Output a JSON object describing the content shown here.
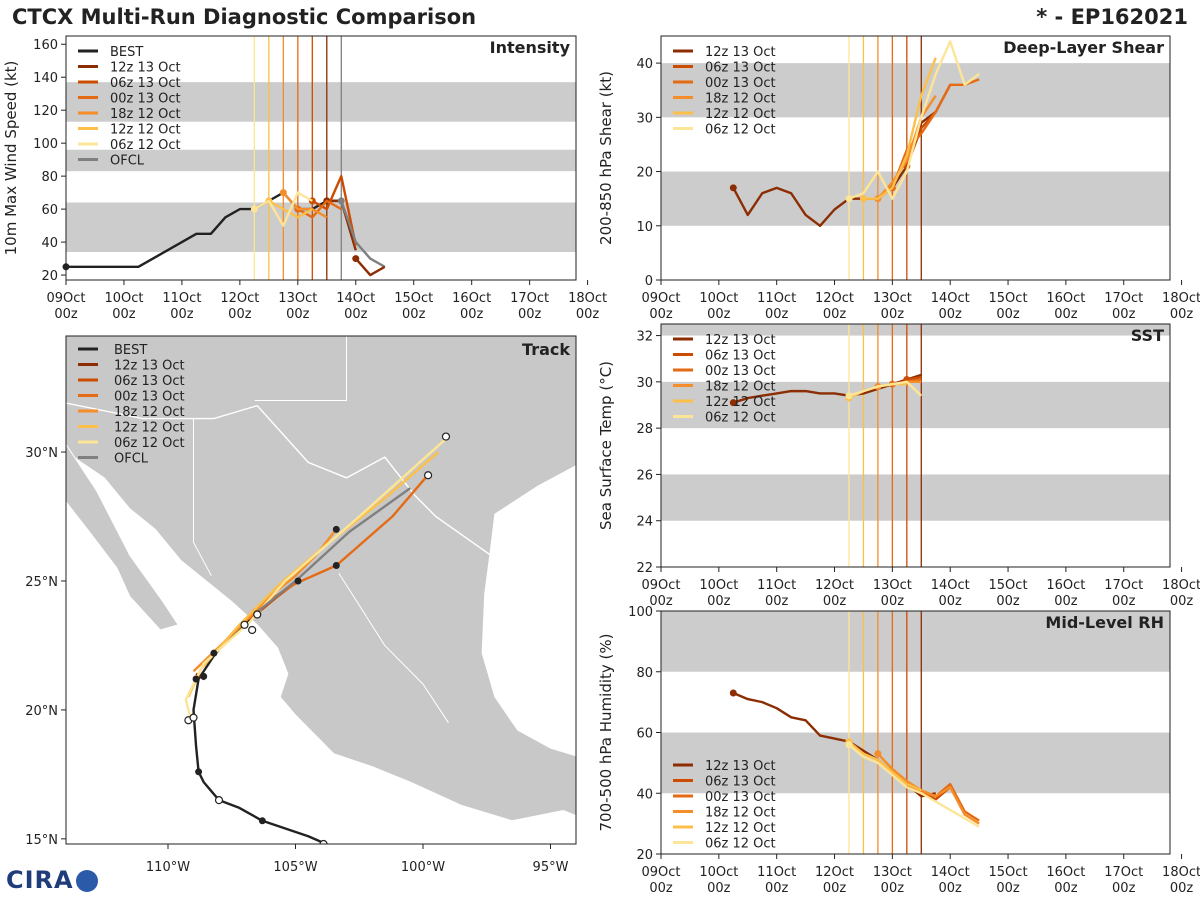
{
  "header": {
    "title_left": "CTCX Multi-Run Diagnostic Comparison",
    "title_right": "* - EP162021"
  },
  "logo_text": "CIRA",
  "colors": {
    "BEST": "#222222",
    "OFCL": "#808080",
    "12z 13 Oct": "#8c2d04",
    "06z 13 Oct": "#cc4c02",
    "00z 13 Oct": "#e56a14",
    "18z 12 Oct": "#f48d2a",
    "12z 12 Oct": "#fbbf4a",
    "06z 12 Oct": "#fde598",
    "band": "#cccccc",
    "land": "#c8c8c8"
  },
  "time_axis": {
    "ticks": [
      "09Oct\n00z",
      "10Oct\n00z",
      "11Oct\n00z",
      "12Oct\n00z",
      "13Oct\n00z",
      "14Oct\n00z",
      "15Oct\n00z",
      "16Oct\n00z",
      "17Oct\n00z",
      "18Oct\n00z"
    ]
  },
  "chart_data": [
    {
      "id": "intensity",
      "type": "line",
      "title": "Intensity",
      "ylabel": "10m Max Wind Speed (kt)",
      "xlim": [
        0,
        8.8
      ],
      "ylim": [
        17,
        165
      ],
      "yticks": [
        20,
        40,
        60,
        80,
        100,
        120,
        140,
        160
      ],
      "bands": [
        [
          34,
          64
        ],
        [
          83,
          96
        ],
        [
          113,
          137
        ]
      ],
      "vlines": [
        3.25,
        3.5,
        3.75,
        4.0,
        4.25,
        4.5,
        4.75
      ],
      "legend": [
        "BEST",
        "12z 13 Oct",
        "06z 13 Oct",
        "00z 13 Oct",
        "18z 12 Oct",
        "12z 12 Oct",
        "06z 12 Oct",
        "OFCL"
      ],
      "series": [
        {
          "name": "BEST",
          "x": [
            0,
            0.5,
            1.0,
            1.25,
            1.5,
            1.75,
            2.0,
            2.25,
            2.5,
            2.75,
            3.0,
            3.25,
            3.5,
            3.75,
            4.0,
            4.25,
            4.5,
            4.75
          ],
          "y": [
            25,
            25,
            25,
            25,
            30,
            35,
            40,
            45,
            45,
            55,
            60,
            60,
            65,
            70,
            60,
            60,
            65,
            65
          ]
        },
        {
          "name": "12z 13 Oct",
          "x": [
            4.5,
            4.75,
            5.0
          ],
          "y": [
            65,
            65,
            35
          ]
        },
        {
          "name": "06z 13 Oct",
          "x": [
            4.25,
            4.5,
            4.75,
            5.0
          ],
          "y": [
            65,
            60,
            80,
            38
          ]
        },
        {
          "name": "00z 13 Oct",
          "x": [
            4.0,
            4.25,
            4.5,
            4.75
          ],
          "y": [
            60,
            55,
            65,
            60
          ]
        },
        {
          "name": "18z 12 Oct",
          "x": [
            3.75,
            4.0,
            4.25,
            4.5
          ],
          "y": [
            70,
            60,
            60,
            55
          ]
        },
        {
          "name": "12z 12 Oct",
          "x": [
            3.5,
            3.75,
            4.0,
            4.25
          ],
          "y": [
            65,
            60,
            55,
            60
          ]
        },
        {
          "name": "06z 12 Oct",
          "x": [
            3.25,
            3.5,
            3.75,
            4.0,
            4.25
          ],
          "y": [
            60,
            65,
            50,
            70,
            65
          ]
        },
        {
          "name": "OFCL",
          "x": [
            4.75,
            5.0,
            5.25,
            5.5
          ],
          "y": [
            65,
            40,
            30,
            25
          ]
        },
        {
          "name": "12z 13 Oct",
          "x": [
            5.0,
            5.25,
            5.5
          ],
          "y": [
            30,
            20,
            25
          ]
        }
      ]
    },
    {
      "id": "shear",
      "type": "line",
      "title": "Deep-Layer Shear",
      "ylabel": "200-850 hPa Shear (kt)",
      "xlim": [
        0,
        8.8
      ],
      "ylim": [
        0,
        45
      ],
      "yticks": [
        0,
        10,
        20,
        30,
        40
      ],
      "bands": [
        [
          10,
          20
        ],
        [
          30,
          40
        ]
      ],
      "vlines": [
        3.25,
        3.5,
        3.75,
        4.0,
        4.25,
        4.5
      ],
      "legend": [
        "12z 13 Oct",
        "06z 13 Oct",
        "00z 13 Oct",
        "18z 12 Oct",
        "12z 12 Oct",
        "06z 12 Oct"
      ],
      "series": [
        {
          "name": "12z 13 Oct",
          "x": [
            1.25,
            1.5,
            1.75,
            2.0,
            2.25,
            2.5,
            2.75,
            3.0,
            3.25,
            3.5,
            3.75,
            4.0,
            4.25,
            4.5,
            4.75
          ],
          "y": [
            17,
            12,
            16,
            17,
            16,
            12,
            10,
            13,
            15,
            15,
            15,
            17,
            21,
            29,
            31
          ]
        },
        {
          "name": "06z 13 Oct",
          "x": [
            4.25,
            4.5,
            4.75,
            5.0
          ],
          "y": [
            21,
            28,
            31,
            36
          ]
        },
        {
          "name": "00z 13 Oct",
          "x": [
            4.0,
            4.25,
            4.5,
            4.75,
            5.0,
            5.25,
            5.5
          ],
          "y": [
            17,
            24,
            27,
            31,
            36,
            36,
            37
          ]
        },
        {
          "name": "18z 12 Oct",
          "x": [
            3.75,
            4.0,
            4.25,
            4.5,
            4.75
          ],
          "y": [
            15,
            18,
            22,
            30,
            34
          ]
        },
        {
          "name": "12z 12 Oct",
          "x": [
            3.5,
            3.75,
            4.0,
            4.25,
            4.5,
            4.75
          ],
          "y": [
            15,
            15,
            17,
            23,
            34,
            41
          ]
        },
        {
          "name": "06z 12 Oct",
          "x": [
            3.25,
            3.5,
            3.75,
            4.0,
            4.25,
            4.5,
            4.75,
            5.0,
            5.25,
            5.5
          ],
          "y": [
            15,
            16,
            20,
            15,
            20,
            30,
            38,
            44,
            36,
            38
          ]
        }
      ]
    },
    {
      "id": "sst",
      "type": "line",
      "title": "SST",
      "ylabel": "Sea Surface Temp (°C)",
      "xlim": [
        0,
        8.8
      ],
      "ylim": [
        22,
        32.5
      ],
      "yticks": [
        22,
        24,
        26,
        28,
        30,
        32
      ],
      "bands": [
        [
          24,
          26
        ],
        [
          28,
          30
        ],
        [
          32,
          32.5
        ]
      ],
      "vlines": [
        3.25,
        3.5,
        3.75,
        4.0,
        4.25,
        4.5
      ],
      "legend": [
        "12z 13 Oct",
        "06z 13 Oct",
        "00z 13 Oct",
        "18z 12 Oct",
        "12z 12 Oct",
        "06z 12 Oct"
      ],
      "series": [
        {
          "name": "12z 13 Oct",
          "x": [
            1.25,
            1.5,
            1.75,
            2.0,
            2.25,
            2.5,
            2.75,
            3.0,
            3.25,
            3.5,
            3.75,
            4.0,
            4.25,
            4.5
          ],
          "y": [
            29.1,
            29.3,
            29.4,
            29.5,
            29.6,
            29.6,
            29.5,
            29.5,
            29.4,
            29.5,
            29.7,
            29.9,
            30.1,
            30.3
          ]
        },
        {
          "name": "06z 13 Oct",
          "x": [
            4.25,
            4.5
          ],
          "y": [
            30.1,
            30.2
          ]
        },
        {
          "name": "00z 13 Oct",
          "x": [
            4.0,
            4.25,
            4.5
          ],
          "y": [
            29.9,
            30.0,
            30.1
          ]
        },
        {
          "name": "18z 12 Oct",
          "x": [
            3.75,
            4.0,
            4.25,
            4.5
          ],
          "y": [
            29.8,
            29.9,
            30.0,
            30.0
          ]
        },
        {
          "name": "12z 12 Oct",
          "x": [
            3.25,
            3.5,
            3.75,
            4.0,
            4.25
          ],
          "y": [
            29.3,
            29.6,
            29.8,
            29.9,
            29.9
          ]
        },
        {
          "name": "06z 12 Oct",
          "x": [
            3.25,
            3.5,
            3.75,
            4.0,
            4.25,
            4.5
          ],
          "y": [
            29.4,
            29.6,
            29.8,
            29.9,
            30.0,
            29.4
          ]
        }
      ]
    },
    {
      "id": "rh",
      "type": "line",
      "title": "Mid-Level RH",
      "ylabel": "700-500 hPa Humidity (%)",
      "xlim": [
        0,
        8.8
      ],
      "ylim": [
        20,
        100
      ],
      "yticks": [
        20,
        40,
        60,
        80,
        100
      ],
      "bands": [
        [
          40,
          60
        ],
        [
          80,
          100
        ]
      ],
      "vlines": [
        3.25,
        3.5,
        3.75,
        4.0,
        4.25,
        4.5
      ],
      "legend": [
        "12z 13 Oct",
        "06z 13 Oct",
        "00z 13 Oct",
        "18z 12 Oct",
        "12z 12 Oct",
        "06z 12 Oct"
      ],
      "series": [
        {
          "name": "12z 13 Oct",
          "x": [
            1.25,
            1.5,
            1.75,
            2.0,
            2.25,
            2.5,
            2.75,
            3.0,
            3.25,
            3.5,
            3.75,
            4.0,
            4.25,
            4.5,
            4.75
          ],
          "y": [
            73,
            71,
            70,
            68,
            65,
            64,
            59,
            58,
            57,
            54,
            51,
            47,
            43,
            39,
            40
          ]
        },
        {
          "name": "06z 13 Oct",
          "x": [
            4.25,
            4.5,
            4.75,
            5.0
          ],
          "y": [
            43,
            40,
            38,
            42
          ]
        },
        {
          "name": "00z 13 Oct",
          "x": [
            4.0,
            4.25,
            4.5,
            4.75,
            5.0,
            5.25,
            5.5
          ],
          "y": [
            47,
            43,
            40,
            39,
            43,
            34,
            31
          ]
        },
        {
          "name": "18z 12 Oct",
          "x": [
            3.75,
            4.0,
            4.25,
            4.5,
            4.75,
            5.0,
            5.25,
            5.5
          ],
          "y": [
            53,
            48,
            44,
            41,
            39,
            42,
            33,
            30
          ]
        },
        {
          "name": "12z 12 Oct",
          "x": [
            3.25,
            3.5,
            3.75,
            4.0,
            4.25,
            4.5
          ],
          "y": [
            57,
            53,
            51,
            47,
            43,
            41
          ]
        },
        {
          "name": "06z 12 Oct",
          "x": [
            3.25,
            3.5,
            3.75,
            4.0,
            4.25,
            4.5,
            5.5
          ],
          "y": [
            56,
            52,
            50,
            46,
            42,
            40,
            29
          ]
        }
      ]
    },
    {
      "id": "track",
      "type": "line",
      "title": "Track",
      "xlim": [
        -114,
        -94
      ],
      "ylim": [
        14.8,
        34.5
      ],
      "xticks": [
        -110,
        -105,
        -100,
        -95
      ],
      "xtick_labels": [
        "110°W",
        "105°W",
        "100°W",
        "95°W"
      ],
      "yticks": [
        15,
        20,
        25,
        30
      ],
      "ytick_labels": [
        "15°N",
        "20°N",
        "25°N",
        "30°N"
      ],
      "legend": [
        "BEST",
        "12z 13 Oct",
        "06z 13 Oct",
        "00z 13 Oct",
        "18z 12 Oct",
        "12z 12 Oct",
        "06z 12 Oct",
        "OFCL"
      ],
      "series": [
        {
          "name": "BEST",
          "lon": [
            -103.8,
            -104.5,
            -106.3,
            -107.2,
            -108,
            -108.6,
            -108.8,
            -108.9,
            -109.0,
            -108.8,
            -108.6,
            -108.2,
            -107.6,
            -107.0,
            -106.5
          ],
          "lat": [
            14.8,
            15.1,
            15.7,
            16.2,
            16.5,
            17.2,
            17.6,
            18.6,
            20.0,
            21.2,
            21.5,
            22.1,
            22.8,
            23.3,
            23.8
          ]
        },
        {
          "name": "12z 13 Oct",
          "lon": [
            -108.9,
            -108.6,
            -108.5
          ],
          "lat": [
            21.4,
            21.2,
            21.3
          ]
        },
        {
          "name": "06z 13 Oct",
          "lon": [
            -106.8,
            -105.7,
            -104.9
          ],
          "lat": [
            23.5,
            24.4,
            25.0
          ]
        },
        {
          "name": "00z 13 Oct",
          "lon": [
            -108.2,
            -106.6,
            -105.0,
            -103.4,
            -101.2,
            -99.9
          ],
          "lat": [
            22.2,
            23.9,
            24.9,
            25.6,
            27.5,
            29.0
          ]
        },
        {
          "name": "18z 12 Oct",
          "lon": [
            -109.0,
            -107.3,
            -106.0,
            -105.0,
            -104.2,
            -103.4
          ],
          "lat": [
            21.5,
            23.1,
            24.4,
            25.2,
            26.0,
            27.0
          ]
        },
        {
          "name": "12z 12 Oct",
          "lon": [
            -109.2,
            -108.7,
            -107.2,
            -105.6,
            -103.8,
            -101.5,
            -99.4
          ],
          "lat": [
            20.5,
            21.6,
            23.3,
            24.9,
            26.4,
            28.2,
            30.0
          ]
        },
        {
          "name": "06z 12 Oct",
          "lon": [
            -109.1,
            -109.3,
            -108.6,
            -106.8,
            -105.4,
            -102.5,
            -99.0
          ],
          "lat": [
            19.6,
            20.4,
            21.8,
            23.4,
            25.0,
            27.5,
            30.6
          ]
        },
        {
          "name": "OFCL",
          "lon": [
            -106.5,
            -105.0,
            -102.9,
            -100.5
          ],
          "lat": [
            23.8,
            25.0,
            26.9,
            28.6
          ]
        }
      ],
      "open_points": [
        {
          "lon": -99.1,
          "lat": 30.6
        },
        {
          "lon": -99.8,
          "lat": 29.1
        },
        {
          "lon": -106.7,
          "lat": 23.1
        },
        {
          "lon": -106.5,
          "lat": 23.7
        },
        {
          "lon": -107.0,
          "lat": 23.3
        },
        {
          "lon": -109.2,
          "lat": 19.6
        },
        {
          "lon": -109.0,
          "lat": 19.7
        },
        {
          "lon": -108.0,
          "lat": 16.5
        },
        {
          "lon": -103.9,
          "lat": 14.8
        }
      ],
      "filled_points": [
        {
          "lon": -103.4,
          "lat": 27.0
        },
        {
          "lon": -103.4,
          "lat": 25.6
        },
        {
          "lon": -108.9,
          "lat": 21.2
        },
        {
          "lon": -108.6,
          "lat": 21.3
        },
        {
          "lon": -108.8,
          "lat": 17.6
        },
        {
          "lon": -106.3,
          "lat": 15.7
        },
        {
          "lon": -104.9,
          "lat": 25.0
        },
        {
          "lon": -108.2,
          "lat": 22.2
        }
      ]
    }
  ]
}
